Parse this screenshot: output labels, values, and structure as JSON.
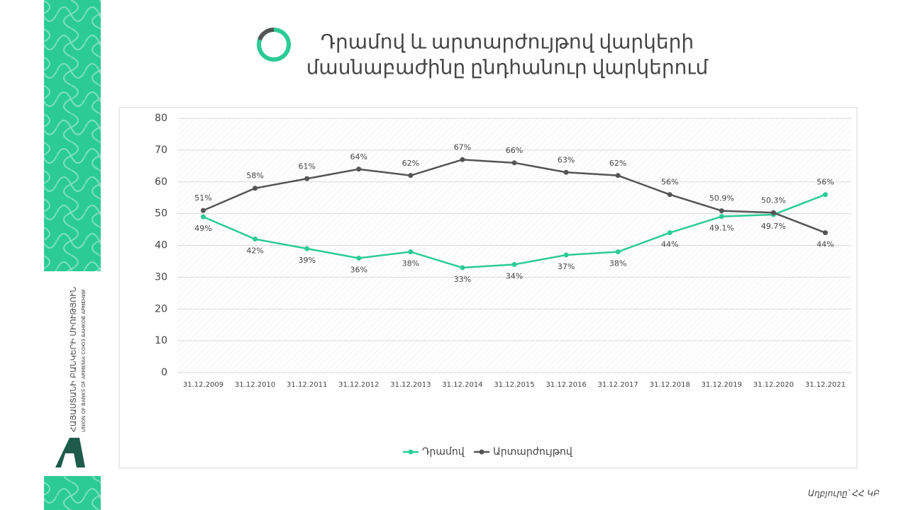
{
  "logo": {
    "name": "ՀԱՅԱՍՏԱՆԻ ԲԱՆԿԵՐԻ ՄԻՈՒԹՅՈՒՆ",
    "subtitle": "UNION OF BANKS OF ARMENIA   СОЮЗ БАНКОВ АРМЕНИИ"
  },
  "source": "Աղբյուրը՝ ՀՀ ԿԲ",
  "chart_data": {
    "type": "line",
    "title": [
      "Դրամով և արտարժույթով վարկերի",
      "մասնաբաժինը ընդհանուր վարկերում"
    ],
    "categories": [
      "31.12.2009",
      "31.12.2010",
      "31.12.2011",
      "31.12.2012",
      "31.12.2013",
      "31.12.2014",
      "31.12.2015",
      "31.12.2016",
      "31.12.2017",
      "31.12.2018",
      "31.12.2019",
      "31.12.2020",
      "31.12.2021"
    ],
    "series": [
      {
        "name": "Դրամով",
        "color": "#2ccb96",
        "values": [
          49,
          42,
          39,
          36,
          38,
          33,
          34,
          37,
          38,
          44,
          49.1,
          49.7,
          56
        ],
        "value_labels": [
          "49%",
          "42%",
          "39%",
          "36%",
          "38%",
          "33%",
          "34%",
          "37%",
          "38%",
          "44%",
          "49.1%",
          "49.7%",
          "56%"
        ]
      },
      {
        "name": "Արտարժույթով",
        "color": "#555555",
        "values": [
          51,
          58,
          61,
          64,
          62,
          67,
          66,
          63,
          62,
          56,
          50.9,
          50.3,
          44
        ],
        "value_labels": [
          "51%",
          "58%",
          "61%",
          "64%",
          "62%",
          "67%",
          "66%",
          "63%",
          "62%",
          "56%",
          "50.9%",
          "50.3%",
          "44%"
        ]
      }
    ],
    "ylim": [
      0,
      80
    ],
    "yticks": [
      0,
      10,
      20,
      30,
      40,
      50,
      60,
      70,
      80
    ],
    "grid": true,
    "legend": "bottom"
  }
}
